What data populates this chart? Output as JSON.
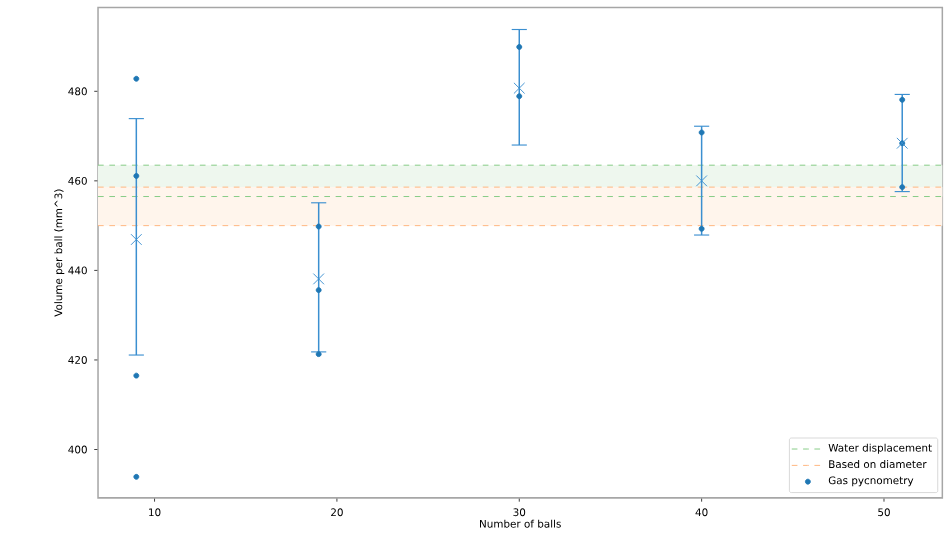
{
  "chart_data": {
    "type": "scatter",
    "xlabel": "Number of balls",
    "ylabel": "Volume per ball (mm^3)",
    "xlim": [
      6.9,
      53.2
    ],
    "ylim": [
      389.2,
      498.7
    ],
    "xticks": [
      10,
      20,
      30,
      40,
      50
    ],
    "yticks": [
      400,
      420,
      440,
      460,
      480
    ],
    "legend": "bottom right",
    "grid": false,
    "bands": [
      {
        "axis": "y",
        "from": 456.5,
        "to": 463.5,
        "color": "#eef7ee"
      },
      {
        "axis": "y",
        "from": 450.0,
        "to": 458.6,
        "color": "#fff5ec"
      }
    ],
    "ref_lines": [
      {
        "axis": "y",
        "value": 463.5,
        "label": "Water displacement",
        "color": "#7fc97f",
        "line_style": "dashed"
      },
      {
        "axis": "y",
        "value": 456.5,
        "color": "#7fc97f",
        "line_style": "dashed"
      },
      {
        "axis": "y",
        "value": 458.6,
        "label": "Based on diameter",
        "color": "#ffb27a",
        "line_style": "dashed"
      },
      {
        "axis": "y",
        "value": 450.0,
        "color": "#ffb27a",
        "line_style": "dashed"
      }
    ],
    "series": [
      {
        "name": "Gas pycnometry",
        "marker": "circle",
        "color": "#1f77b4",
        "x": [
          9,
          9,
          9,
          9,
          19,
          19,
          19,
          30,
          30,
          40,
          40,
          51,
          51,
          51
        ],
        "values": [
          482.8,
          461.1,
          416.5,
          393.9,
          449.8,
          435.6,
          421.3,
          489.9,
          478.9,
          470.8,
          449.3,
          478.1,
          458.6,
          468.4
        ]
      },
      {
        "marker": "cross",
        "color": "#3b8fd0",
        "x": [
          9,
          19,
          30,
          40,
          51
        ],
        "values": [
          446.9,
          438.1,
          480.7,
          460.0,
          468.4
        ],
        "errors": [
          [
            421.1,
            473.9
          ],
          [
            421.8,
            455.1
          ],
          [
            468.0,
            493.8
          ],
          [
            447.9,
            472.2
          ],
          [
            457.6,
            479.3
          ]
        ]
      }
    ]
  }
}
